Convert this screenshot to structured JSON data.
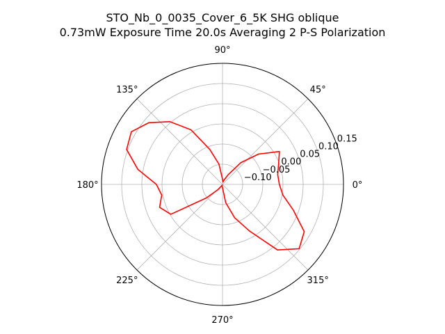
{
  "chart_data": {
    "type": "polar-line",
    "title_line1": "STO_Nb_0_0035_Cover_6_5K SHG oblique",
    "title_line2": "0.73mW Exposure Time 20.0s Averaging 2 P-S  Polarization",
    "r_ticks": [
      -0.1,
      -0.05,
      0.0,
      0.05,
      0.1,
      0.15
    ],
    "r_tick_labels": [
      "−0.10",
      "−0.05",
      "0.00",
      "0.05",
      "0.10",
      "0.15"
    ],
    "rlim": [
      -0.15,
      0.15
    ],
    "theta_ticks": [
      0,
      45,
      90,
      135,
      180,
      225,
      270,
      315
    ],
    "theta_tick_labels": [
      "0°",
      "45°",
      "90°",
      "135°",
      "180°",
      "225°",
      "270°",
      "315°"
    ],
    "grid": true,
    "series": [
      {
        "color": "#ff0000",
        "theta_deg": [
          0,
          10,
          20,
          30,
          40,
          50,
          60,
          70,
          80,
          90,
          100,
          110,
          120,
          130,
          140,
          150,
          160,
          170,
          180,
          190,
          200,
          210,
          220,
          230,
          240,
          250,
          260,
          270,
          280,
          290,
          300,
          310,
          320,
          330,
          340,
          350,
          360
        ],
        "r": [
          -0.009,
          -0.011,
          -0.002,
          0.013,
          -0.033,
          -0.08,
          -0.123,
          -0.138,
          -0.144,
          -0.137,
          -0.099,
          -0.058,
          0.006,
          0.053,
          0.088,
          0.111,
          0.103,
          0.063,
          0.014,
          0.003,
          0.016,
          -0.002,
          -0.098,
          -0.134,
          -0.146,
          -0.148,
          -0.145,
          -0.142,
          -0.104,
          -0.062,
          -0.017,
          0.062,
          0.098,
          0.084,
          0.037,
          0.002,
          -0.009
        ]
      }
    ]
  }
}
